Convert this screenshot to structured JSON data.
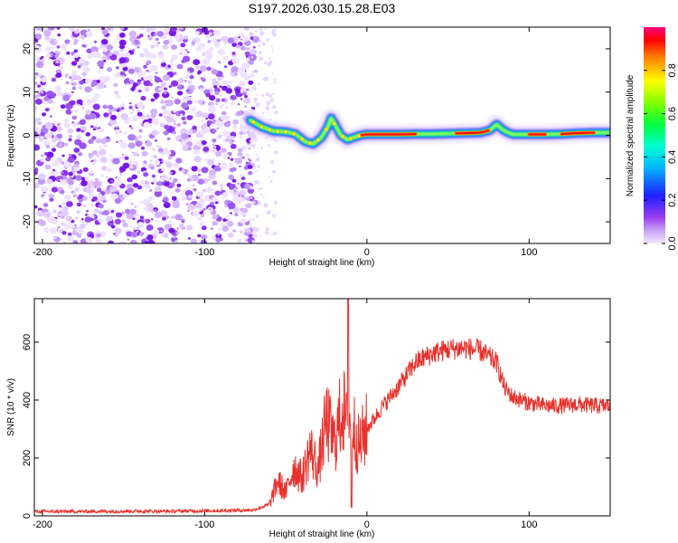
{
  "title": "S197.2026.030.15.28.E03",
  "chart_data": [
    {
      "type": "heatmap",
      "name": "spectrogram",
      "xlabel": "Height of straight line (km)",
      "ylabel": "Frequency (Hz)",
      "xlim": [
        -205,
        150
      ],
      "ylim": [
        -25,
        25
      ],
      "xticks": [
        -200,
        -100,
        0,
        100
      ],
      "yticks": [
        -20,
        -10,
        0,
        10,
        20
      ],
      "noise_region_x": [
        -205,
        -68
      ],
      "ridge": {
        "x": [
          -72,
          -65,
          -58,
          -50,
          -44,
          -38,
          -33,
          -28,
          -24,
          -22,
          -19,
          -16,
          -12,
          -8,
          -4,
          0,
          10,
          20,
          30,
          40,
          50,
          60,
          70,
          76,
          80,
          83,
          86,
          90,
          100,
          110,
          120,
          130,
          140,
          150
        ],
        "y": [
          3.5,
          2.0,
          1.0,
          0.8,
          0.3,
          -1.5,
          -2.0,
          -0.5,
          2.0,
          4.0,
          2.0,
          0.0,
          -1.0,
          -0.5,
          0.0,
          0.2,
          0.2,
          0.2,
          0.3,
          0.3,
          0.4,
          0.5,
          0.6,
          1.2,
          2.5,
          1.5,
          0.8,
          0.2,
          0.2,
          0.2,
          0.3,
          0.5,
          0.6,
          0.6
        ]
      },
      "colorbar": {
        "label": "Normalized spectral amplitude",
        "range": [
          0.0,
          1.0
        ],
        "ticks": [
          "0.0",
          "0.2",
          "0.4",
          "0.6",
          "0.8"
        ]
      }
    },
    {
      "type": "line",
      "name": "snr",
      "xlabel": "Height of straight line (km)",
      "ylabel": "SNR (10 * v/v)",
      "xlim": [
        -205,
        150
      ],
      "ylim": [
        0,
        750
      ],
      "xticks": [
        -200,
        -100,
        0,
        100
      ],
      "yticks": [
        0,
        200,
        400,
        600
      ],
      "color": "#e8312c",
      "series": [
        {
          "name": "SNR",
          "x": [
            -205,
            -180,
            -150,
            -120,
            -90,
            -70,
            -60,
            -55,
            -50,
            -45,
            -40,
            -35,
            -30,
            -25,
            -20,
            -15,
            -12,
            -10,
            -5,
            0,
            5,
            10,
            20,
            30,
            40,
            50,
            60,
            70,
            80,
            85,
            90,
            100,
            110,
            120,
            130,
            140,
            150
          ],
          "y": [
            15,
            15,
            16,
            16,
            18,
            20,
            40,
            120,
            80,
            170,
            130,
            230,
            160,
            330,
            250,
            380,
            300,
            350,
            240,
            300,
            340,
            380,
            450,
            530,
            560,
            575,
            580,
            570,
            530,
            440,
            410,
            390,
            380,
            380,
            385,
            380,
            380
          ]
        }
      ],
      "annotations": [
        {
          "type": "spike",
          "x": -11.5,
          "y": 750
        },
        {
          "type": "dip",
          "x": -9.5,
          "y": 30
        }
      ]
    }
  ]
}
